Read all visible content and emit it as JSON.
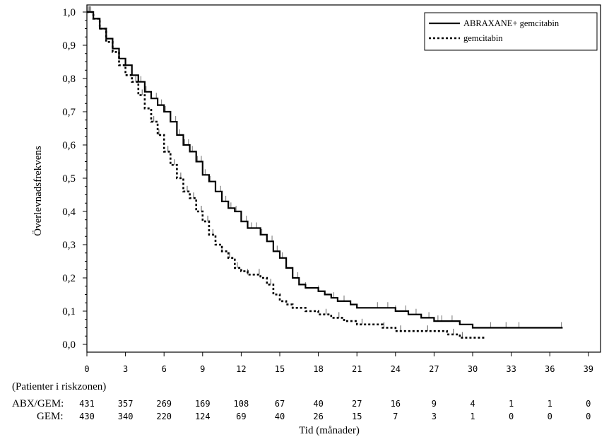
{
  "chart_data": {
    "type": "line",
    "subtype": "kaplan-meier",
    "title": "",
    "xlabel": "Tid (månader)",
    "ylabel": "Överlevnadsfrekvens",
    "xlim": [
      0,
      39
    ],
    "ylim": [
      0,
      1
    ],
    "x_ticks": [
      0,
      3,
      6,
      9,
      12,
      15,
      18,
      21,
      24,
      27,
      30,
      33,
      36,
      39
    ],
    "y_ticks": [
      0.0,
      0.1,
      0.2,
      0.3,
      0.4,
      0.5,
      0.6,
      0.7,
      0.8,
      0.9,
      1.0
    ],
    "y_tick_labels": [
      "0,0",
      "0,1",
      "0,2",
      "0,3",
      "0,4",
      "0,5",
      "0,6",
      "0,7",
      "0,8",
      "0,9",
      "1,0"
    ],
    "grid": false,
    "legend_position": "top-right",
    "series": [
      {
        "name": "ABRAXANE+ gemcitabin",
        "line_style": "solid",
        "color": "#000000",
        "x": [
          0,
          0.5,
          1,
          1.5,
          2,
          2.5,
          3,
          3.5,
          4,
          4.5,
          5,
          5.5,
          6,
          6.5,
          7,
          7.5,
          8,
          8.5,
          9,
          9.5,
          10,
          10.5,
          11,
          11.5,
          12,
          12.5,
          13,
          13.5,
          14,
          14.5,
          15,
          15.5,
          16,
          16.5,
          17,
          17.5,
          18,
          18.5,
          19,
          19.5,
          20,
          20.5,
          21,
          22,
          23,
          24,
          25,
          26,
          27,
          28,
          29,
          30,
          31,
          32,
          33,
          34,
          35,
          36,
          37
        ],
        "y": [
          1.0,
          0.98,
          0.95,
          0.92,
          0.89,
          0.86,
          0.84,
          0.81,
          0.79,
          0.76,
          0.74,
          0.72,
          0.7,
          0.67,
          0.63,
          0.6,
          0.58,
          0.55,
          0.51,
          0.49,
          0.46,
          0.43,
          0.41,
          0.4,
          0.37,
          0.35,
          0.35,
          0.33,
          0.31,
          0.28,
          0.26,
          0.23,
          0.2,
          0.18,
          0.17,
          0.17,
          0.16,
          0.15,
          0.14,
          0.13,
          0.13,
          0.12,
          0.11,
          0.11,
          0.11,
          0.1,
          0.09,
          0.08,
          0.07,
          0.07,
          0.06,
          0.05,
          0.05,
          0.05,
          0.05,
          0.05,
          0.05,
          0.05,
          0.05
        ]
      },
      {
        "name": "gemcitabin",
        "line_style": "dotted",
        "color": "#000000",
        "x": [
          0,
          0.5,
          1,
          1.5,
          2,
          2.5,
          3,
          3.5,
          4,
          4.5,
          5,
          5.5,
          6,
          6.5,
          7,
          7.5,
          8,
          8.5,
          9,
          9.5,
          10,
          10.5,
          11,
          11.5,
          12,
          12.5,
          13,
          13.5,
          14,
          14.5,
          15,
          15.5,
          16,
          17,
          18,
          19,
          20,
          21,
          22,
          23,
          24,
          25,
          26,
          27,
          28,
          29,
          30,
          31
        ],
        "y": [
          1.0,
          0.98,
          0.95,
          0.91,
          0.88,
          0.84,
          0.81,
          0.79,
          0.75,
          0.71,
          0.67,
          0.63,
          0.58,
          0.54,
          0.5,
          0.46,
          0.44,
          0.4,
          0.37,
          0.33,
          0.3,
          0.28,
          0.26,
          0.23,
          0.22,
          0.21,
          0.21,
          0.2,
          0.18,
          0.15,
          0.13,
          0.12,
          0.11,
          0.1,
          0.09,
          0.08,
          0.07,
          0.06,
          0.06,
          0.05,
          0.04,
          0.04,
          0.04,
          0.04,
          0.03,
          0.02,
          0.02,
          0.02
        ]
      }
    ],
    "risk_table": {
      "title": "(Patienter i riskzonen)",
      "times": [
        0,
        3,
        6,
        9,
        12,
        15,
        18,
        21,
        24,
        27,
        30,
        33,
        36,
        39
      ],
      "rows": [
        {
          "label": "ABX/GEM:",
          "values": [
            "431",
            "357",
            "269",
            "169",
            "108",
            "67",
            "40",
            "27",
            "16",
            "9",
            "4",
            "1",
            "1",
            "0"
          ]
        },
        {
          "label": "GEM:",
          "values": [
            "430",
            "340",
            "220",
            "124",
            "69",
            "40",
            "26",
            "15",
            "7",
            "3",
            "1",
            "0",
            "0",
            "0"
          ]
        }
      ]
    }
  }
}
